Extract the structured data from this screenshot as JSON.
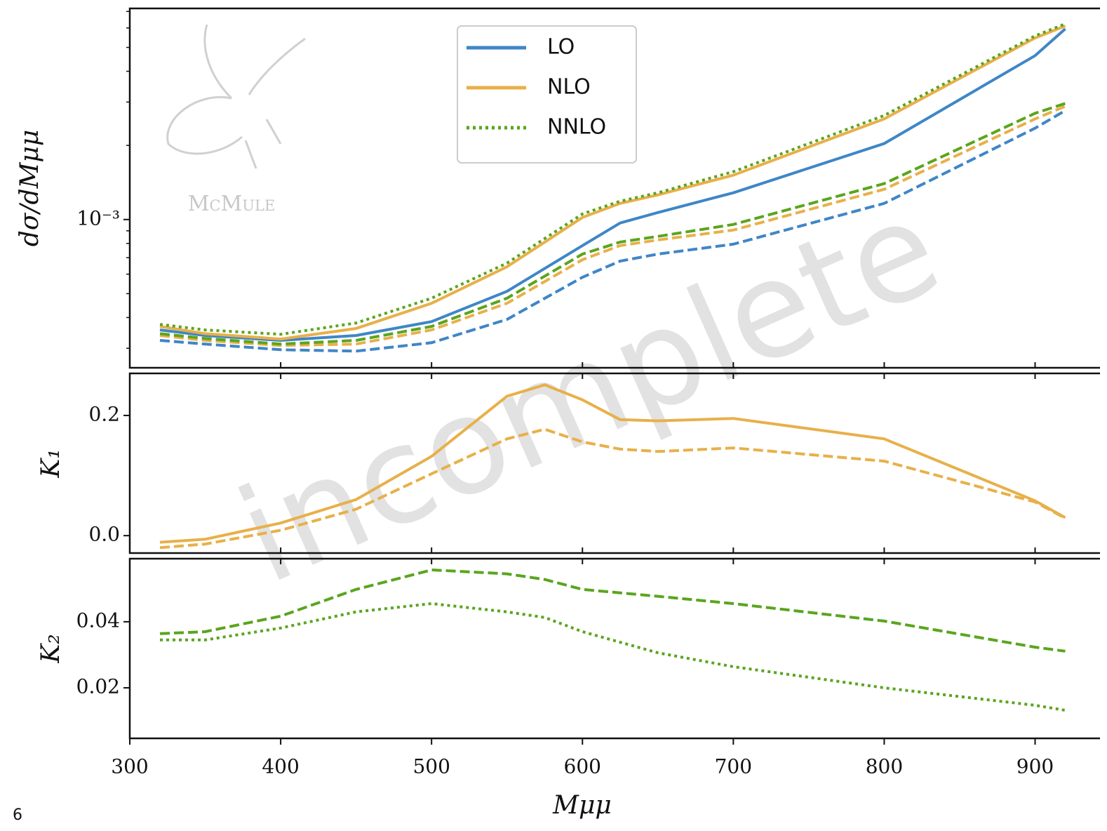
{
  "chart_data": [
    {
      "type": "line",
      "ylabel": "dσ/dMμμ",
      "log_y": true,
      "legend": "upper center",
      "xlim": [
        300,
        943
      ],
      "ylim": [
        0.00025,
        0.0072
      ],
      "yticks": [
        {
          "value": 0.001,
          "label": "10⁻³"
        }
      ],
      "yminorticks": [
        0.0003,
        0.0004,
        0.0005,
        0.0006,
        0.0007,
        0.0008,
        0.0009,
        0.002,
        0.003,
        0.004,
        0.005,
        0.006,
        0.007
      ],
      "x": [
        320,
        350,
        400,
        450,
        500,
        550,
        600,
        625,
        650,
        700,
        800,
        900,
        920
      ],
      "series": [
        {
          "name": "LO",
          "color": "#3f86c6",
          "dash": "solid",
          "values": [
            0.000356,
            0.000338,
            0.000323,
            0.000338,
            0.000385,
            0.000511,
            0.000784,
            0.000968,
            0.001068,
            0.001284,
            0.002035,
            0.00463,
            0.00595
          ]
        },
        {
          "name": "NLO",
          "color": "#e8b04a",
          "dash": "solid",
          "values": [
            0.000368,
            0.000344,
            0.000327,
            0.000361,
            0.000457,
            0.000643,
            0.00102,
            0.001163,
            0.001259,
            0.001514,
            0.002562,
            0.00546,
            0.00611
          ]
        },
        {
          "name": "NNLO",
          "color": "#5aa51e",
          "dash": "dotted",
          "values": [
            0.000375,
            0.000356,
            0.000342,
            0.00038,
            0.000479,
            0.000665,
            0.001054,
            0.001187,
            0.001284,
            0.001564,
            0.002647,
            0.00557,
            0.00623
          ]
        },
        {
          "color": "#3f86c6",
          "dash": "dashed",
          "values": [
            0.000323,
            0.000312,
            0.000296,
            0.000292,
            0.000316,
            0.000393,
            0.000583,
            0.000678,
            0.000724,
            0.000794,
            0.001163,
            0.00235,
            0.00277
          ]
        },
        {
          "color": "#e8b04a",
          "dash": "dashed",
          "values": [
            0.000338,
            0.000323,
            0.000308,
            0.000312,
            0.000356,
            0.000457,
            0.000687,
            0.000784,
            0.000826,
            0.000906,
            0.001327,
            0.002562,
            0.002884
          ]
        },
        {
          "color": "#5aa51e",
          "dash": "dashed",
          "values": [
            0.000344,
            0.000329,
            0.000312,
            0.000323,
            0.000368,
            0.000479,
            0.000724,
            0.00081,
            0.000854,
            0.000955,
            0.001399,
            0.0027,
            0.00296
          ]
        }
      ]
    },
    {
      "type": "line",
      "ylabel": "K₁",
      "xlim": [
        300,
        943
      ],
      "ylim": [
        -0.029,
        0.27
      ],
      "yticks": [
        {
          "value": 0,
          "label": "0.0"
        },
        0.2
      ],
      "x": [
        320,
        350,
        400,
        450,
        500,
        550,
        575,
        600,
        625,
        650,
        700,
        800,
        900,
        920
      ],
      "series": [
        {
          "color": "#e8b04a",
          "dash": "solid",
          "values": [
            -0.011,
            -0.006,
            0.021,
            0.06,
            0.132,
            0.232,
            0.251,
            0.226,
            0.193,
            0.191,
            0.195,
            0.161,
            0.058,
            0.03
          ]
        },
        {
          "color": "#e8b04a",
          "dash": "dashed",
          "values": [
            -0.02,
            -0.014,
            0.009,
            0.044,
            0.103,
            0.161,
            0.177,
            0.156,
            0.144,
            0.14,
            0.146,
            0.124,
            0.056,
            0.029
          ]
        }
      ]
    },
    {
      "type": "line",
      "ylabel": "K₂",
      "xlabel": "Mμμ",
      "xlim": [
        300,
        943
      ],
      "ylim": [
        0.0047,
        0.0591
      ],
      "yticks": [
        0.02,
        0.04
      ],
      "xticks": [
        300,
        400,
        500,
        600,
        700,
        800,
        900
      ],
      "x": [
        320,
        350,
        400,
        450,
        500,
        550,
        575,
        600,
        650,
        700,
        800,
        900,
        920
      ],
      "series": [
        {
          "color": "#5aa51e",
          "dash": "dashed",
          "values": [
            0.0364,
            0.037,
            0.0417,
            0.0498,
            0.0557,
            0.0545,
            0.0528,
            0.0498,
            0.0477,
            0.0455,
            0.0402,
            0.0323,
            0.0311
          ]
        },
        {
          "color": "#5aa51e",
          "dash": "dotted",
          "values": [
            0.0345,
            0.0345,
            0.0381,
            0.043,
            0.0455,
            0.043,
            0.0413,
            0.037,
            0.0306,
            0.0264,
            0.02,
            0.0147,
            0.0132
          ]
        }
      ]
    }
  ],
  "watermark": "incomplete",
  "logo_text": "McMule",
  "page_number": "6"
}
